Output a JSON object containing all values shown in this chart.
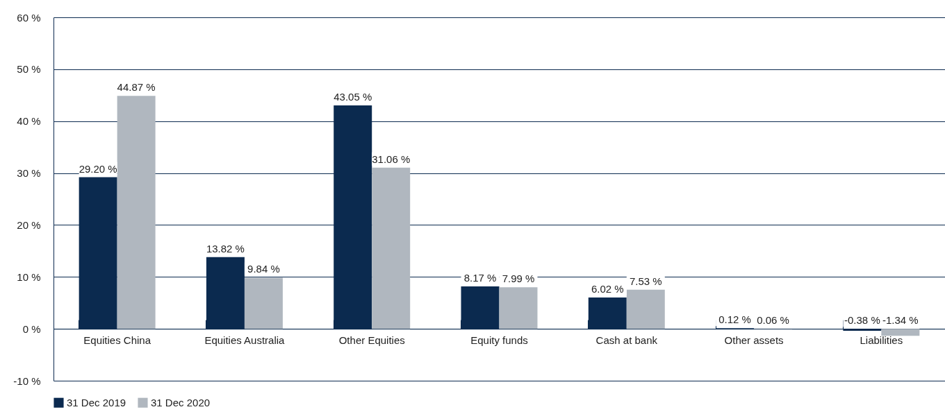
{
  "chart_data": {
    "type": "bar",
    "categories": [
      "Equities China",
      "Equities Australia",
      "Other Equities",
      "Equity funds",
      "Cash at bank",
      "Other assets",
      "Liabilities"
    ],
    "series": [
      {
        "name": "31 Dec 2019",
        "color": "#0b2a4f",
        "values": [
          29.2,
          13.82,
          43.05,
          8.17,
          6.02,
          0.12,
          -0.38
        ],
        "value_labels": [
          "29.20 %",
          "13.82 %",
          "43.05 %",
          "8.17 %",
          "6.02 %",
          "0.12 %",
          "-0.38 %"
        ]
      },
      {
        "name": "31 Dec 2020",
        "color": "#b0b7bf",
        "values": [
          44.87,
          9.84,
          31.06,
          7.99,
          7.53,
          0.06,
          -1.34
        ],
        "value_labels": [
          "44.87 %",
          "9.84 %",
          "31.06 %",
          "7.99 %",
          "7.53 %",
          "0.06 %",
          "-1.34 %"
        ]
      }
    ],
    "ylim": [
      -10,
      60
    ],
    "yticks": [
      {
        "value": -10,
        "label": "-10 %"
      },
      {
        "value": 0,
        "label": "0 %"
      },
      {
        "value": 10,
        "label": "10 %"
      },
      {
        "value": 20,
        "label": "20 %"
      },
      {
        "value": 30,
        "label": "30 %"
      },
      {
        "value": 40,
        "label": "40 %"
      },
      {
        "value": 50,
        "label": "50 %"
      },
      {
        "value": 60,
        "label": "60 %"
      }
    ],
    "grid": "y",
    "legend": "bottom"
  }
}
